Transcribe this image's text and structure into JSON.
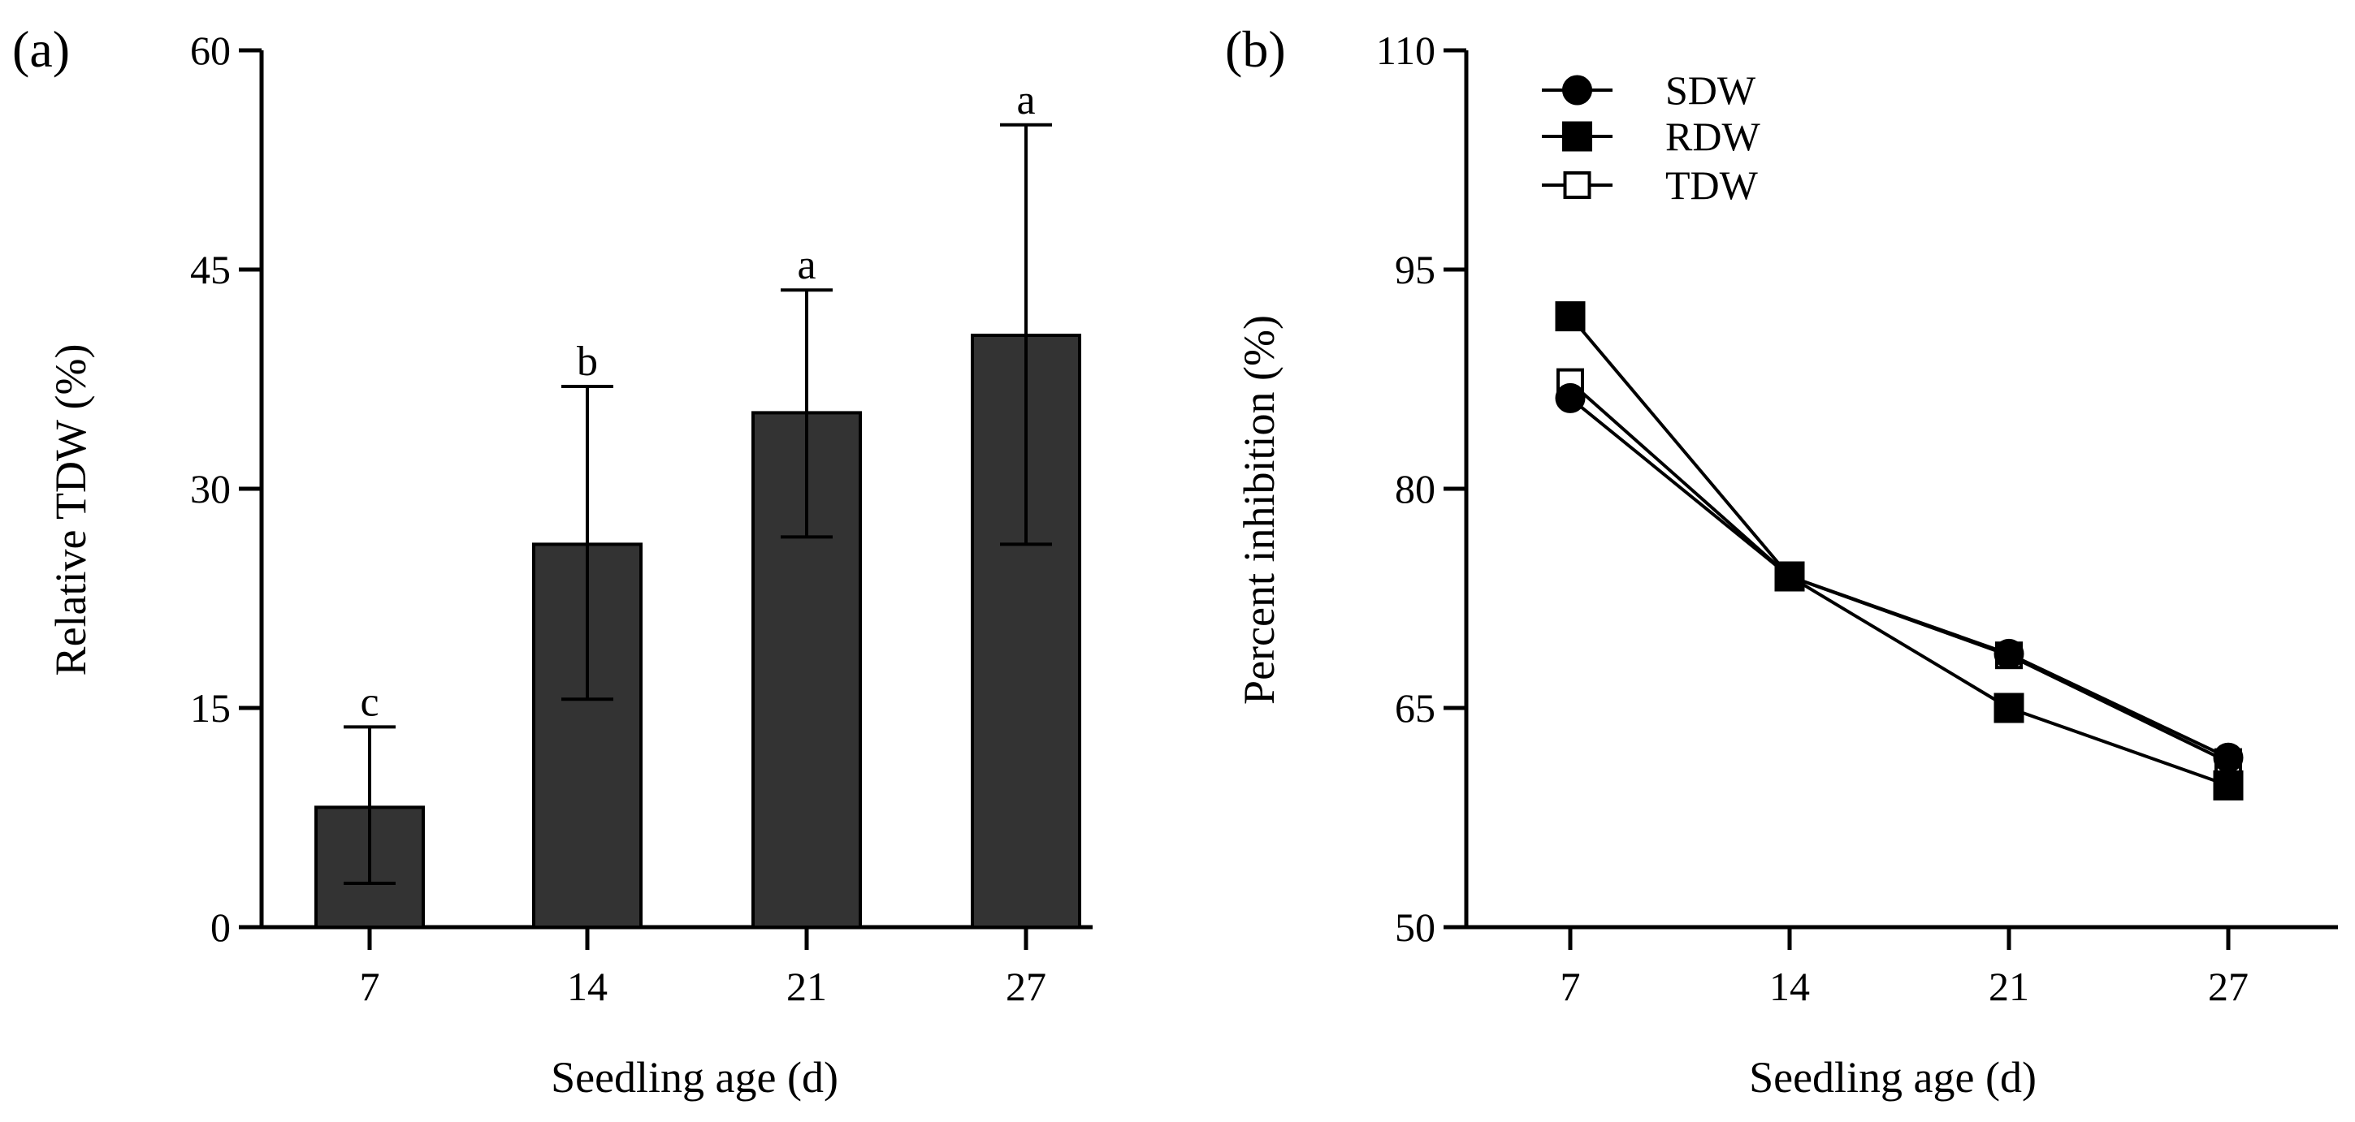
{
  "chart_data": [
    {
      "type": "bar",
      "panel_label": "(a)",
      "categories": [
        "7",
        "14",
        "21",
        "27"
      ],
      "values": [
        8.2,
        26.2,
        35.2,
        40.5
      ],
      "error_upper": [
        13.7,
        37.0,
        43.6,
        54.9
      ],
      "error_lower": [
        3.0,
        15.6,
        26.7,
        26.2
      ],
      "significance": [
        "c",
        "b",
        "a",
        "a"
      ],
      "xlabel": "Seedling age (d)",
      "ylabel": "Relative TDW (%)",
      "ylim": [
        0,
        60
      ],
      "yticks": [
        "0",
        "15",
        "30",
        "45",
        "60"
      ],
      "bar_color": "#333333"
    },
    {
      "type": "line",
      "panel_label": "(b)",
      "categories": [
        "7",
        "14",
        "21",
        "27"
      ],
      "series": [
        {
          "name": "SDW",
          "marker": "circle-filled",
          "values": [
            86.2,
            74.0,
            68.7,
            61.6
          ]
        },
        {
          "name": "RDW",
          "marker": "square-filled",
          "values": [
            91.8,
            74.0,
            65.0,
            59.7
          ]
        },
        {
          "name": "TDW",
          "marker": "square-open",
          "values": [
            87.3,
            74.0,
            68.6,
            61.3
          ]
        }
      ],
      "xlabel": "Seedling age (d)",
      "ylabel": "Percent inhibition (%)",
      "ylim": [
        50,
        110
      ],
      "yticks": [
        "50",
        "65",
        "80",
        "95",
        "110"
      ],
      "legend_position": "top-left"
    }
  ]
}
